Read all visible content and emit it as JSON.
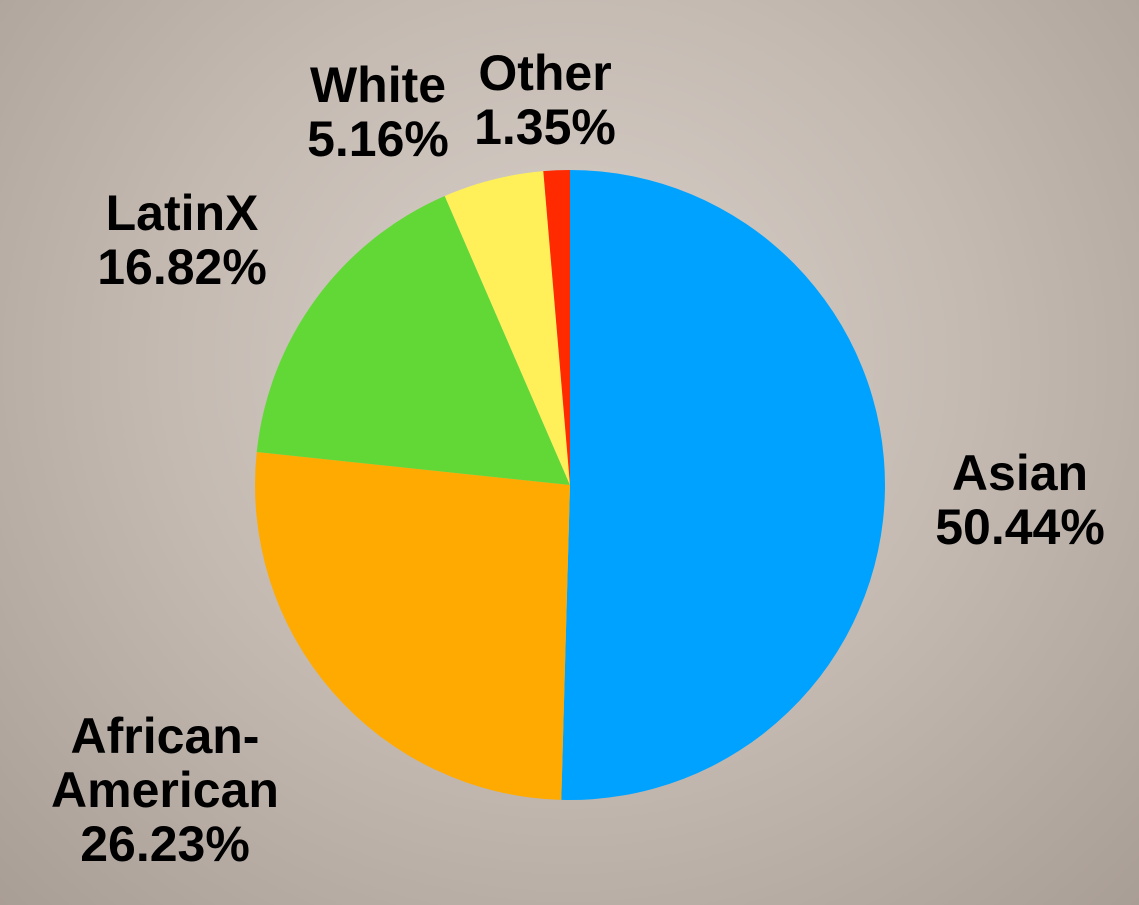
{
  "chart_data": {
    "type": "pie",
    "categories": [
      "Asian",
      "African-American",
      "LatinX",
      "White",
      "Other"
    ],
    "values": [
      50.44,
      26.23,
      16.82,
      5.16,
      1.35
    ],
    "value_labels": [
      "50.44%",
      "26.23%",
      "16.82%",
      "5.16%",
      "1.35%"
    ],
    "colors": [
      "#00a2ff",
      "#ffaa00",
      "#62d836",
      "#fff05a",
      "#ff2a00"
    ]
  }
}
